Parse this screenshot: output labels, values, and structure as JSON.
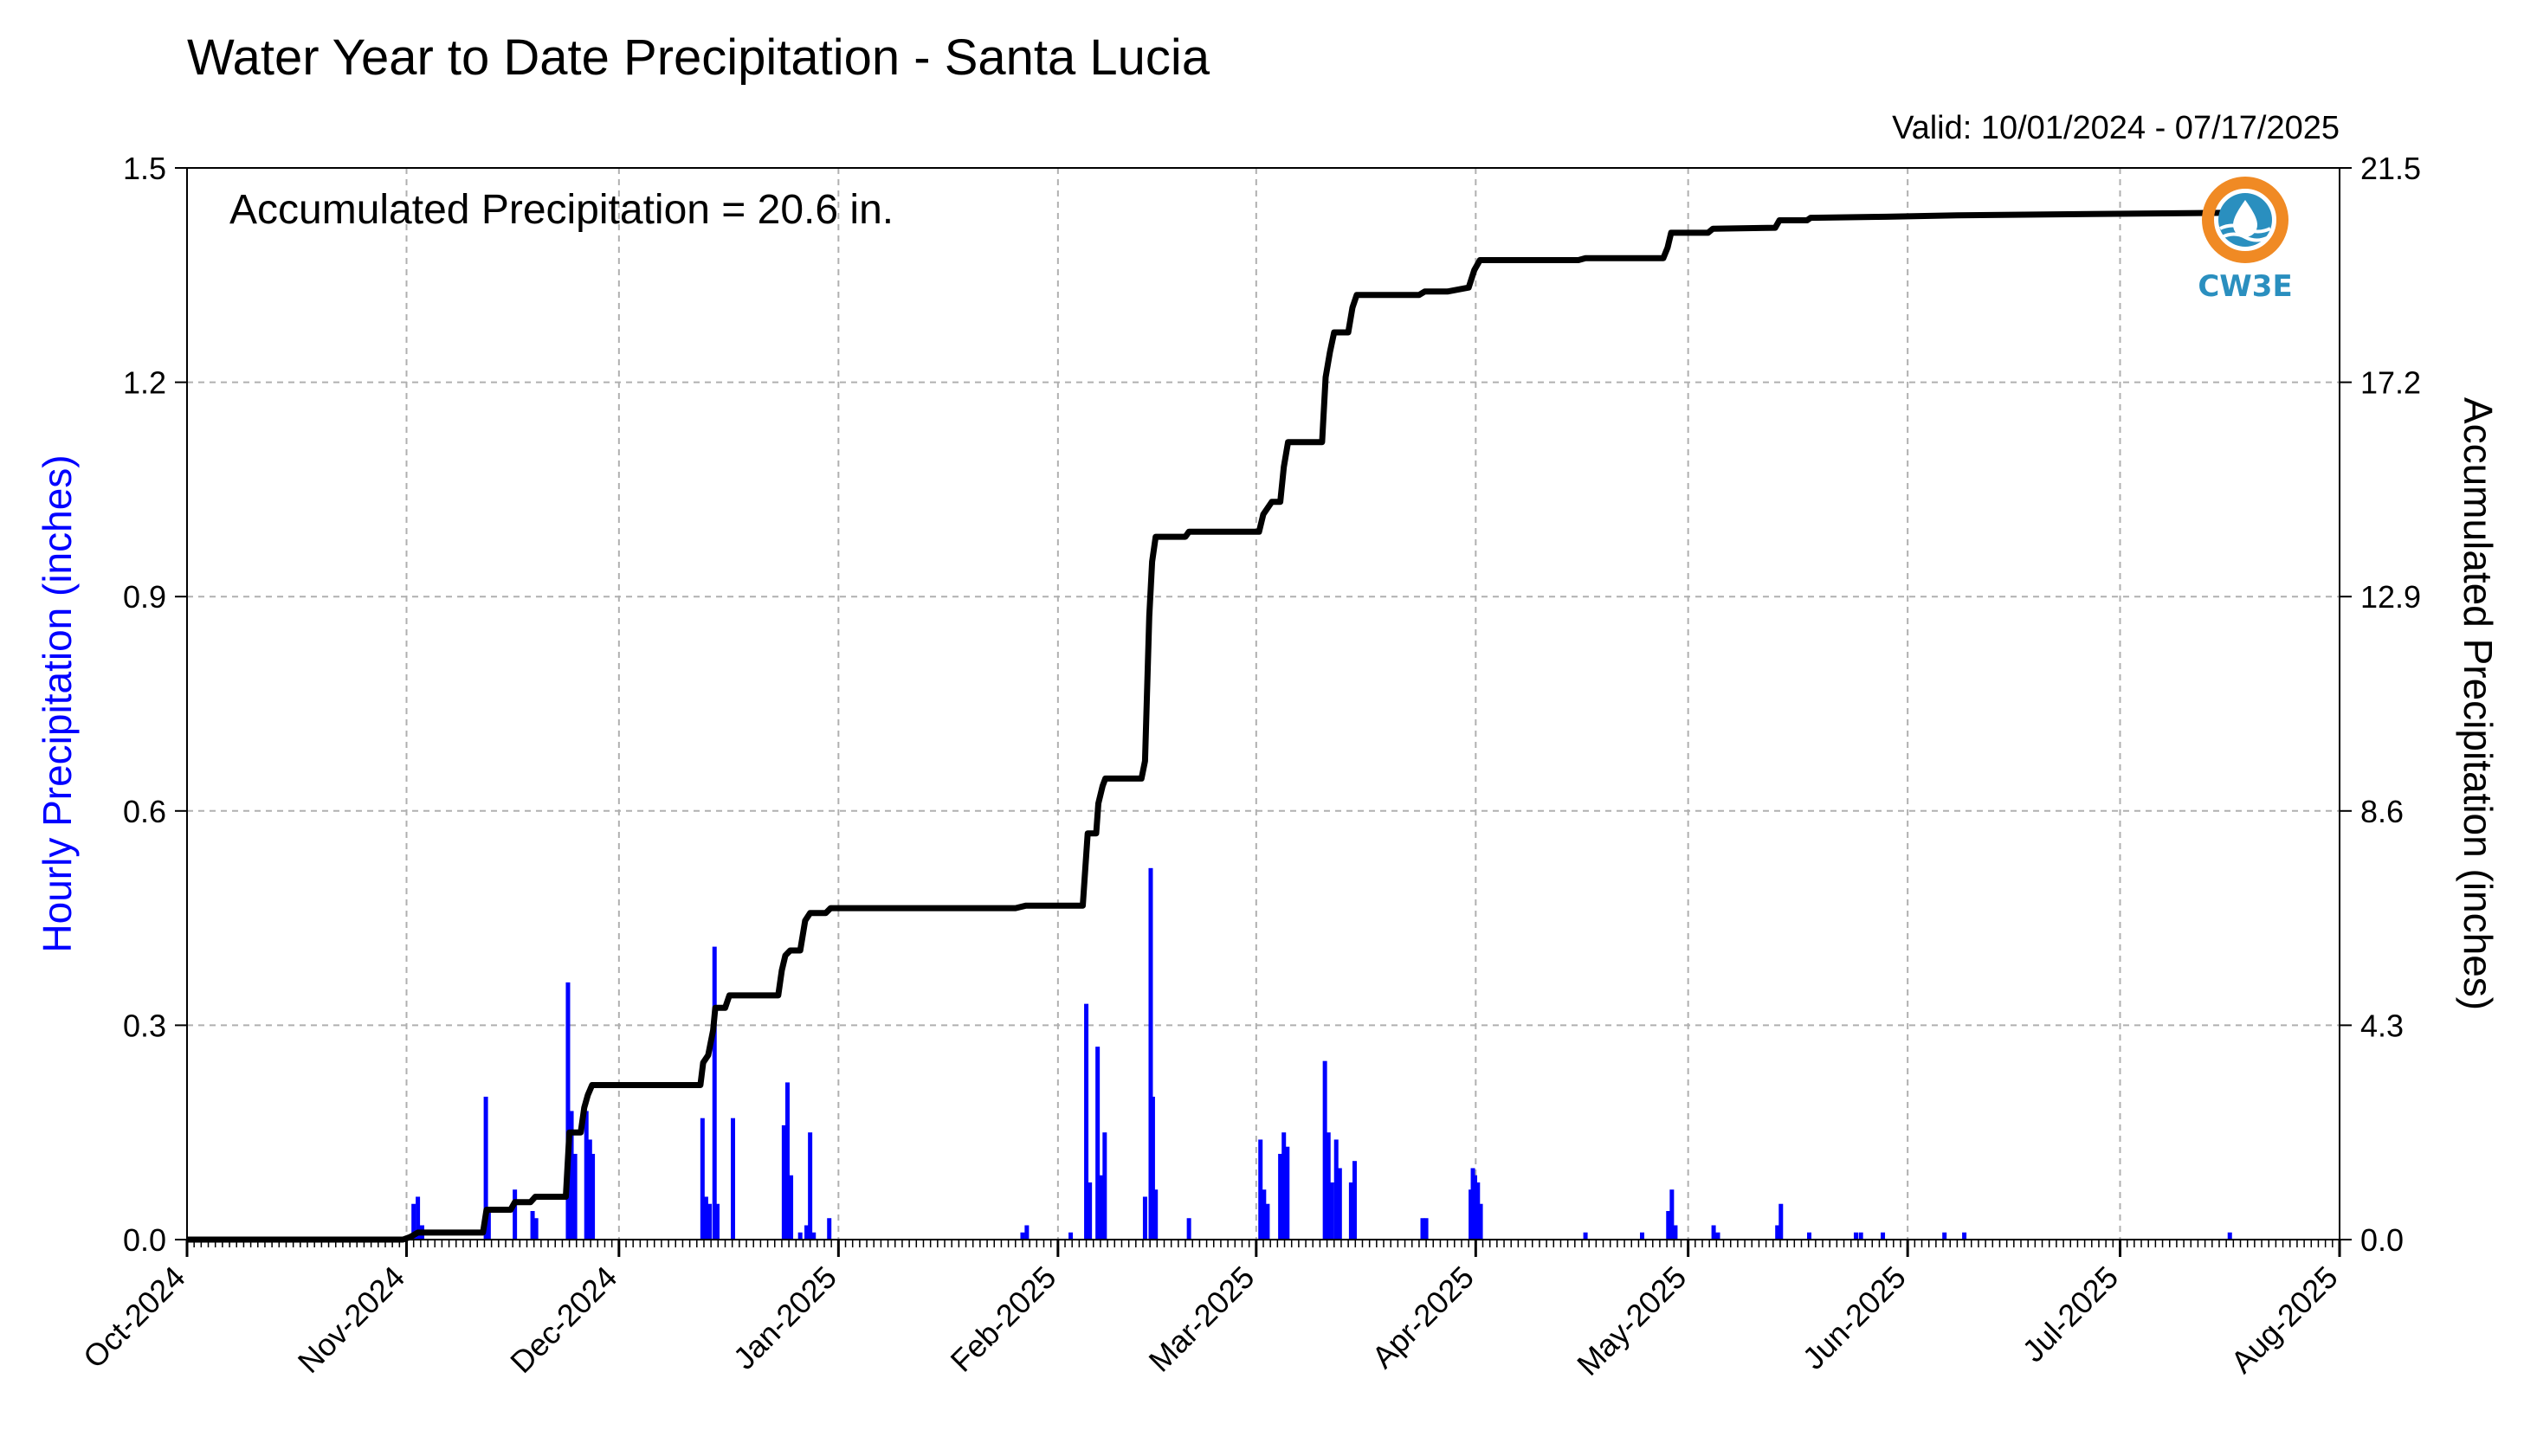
{
  "chart_data": {
    "type": "bar+line",
    "title": "Water Year to Date Precipitation - Santa Lucia",
    "valid_label": "Valid: 10/01/2024 - 07/17/2025",
    "annotation": "Accumulated Precipitation = 20.6 in.",
    "y_left_label": "Hourly Precipitation (inches)",
    "y_right_label": "Accumulated Precipitation (inches)",
    "y_left_ticks": [
      "0.0",
      "0.3",
      "0.6",
      "0.9",
      "1.2",
      "1.5"
    ],
    "y_right_ticks": [
      "0.0",
      "4.3",
      "8.6",
      "12.9",
      "17.2",
      "21.5"
    ],
    "ylim_left": [
      0,
      1.5
    ],
    "ylim_right": [
      0,
      21.5
    ],
    "x_ticks": [
      "Oct-2024",
      "Nov-2024",
      "Dec-2024",
      "Jan-2025",
      "Feb-2025",
      "Mar-2025",
      "Apr-2025",
      "May-2025",
      "Jun-2025",
      "Jul-2025",
      "Aug-2025"
    ],
    "x_tick_days": [
      0,
      31,
      61,
      92,
      123,
      151,
      182,
      212,
      243,
      273,
      304
    ],
    "xlim_days": [
      0,
      304
    ],
    "grid": true,
    "colors": {
      "hourly": "#0000ff",
      "accumulated": "#000000",
      "grid": "#b0b0b0",
      "y_left_label": "#0000ff"
    },
    "logo": {
      "text": "CW3E",
      "ring_color": "#f08a24",
      "drop_color": "#2a8fbf"
    },
    "hourly": [
      {
        "day": 32.0,
        "in": 0.05
      },
      {
        "day": 32.6,
        "in": 0.06
      },
      {
        "day": 33.2,
        "in": 0.02
      },
      {
        "day": 42.2,
        "in": 0.2
      },
      {
        "day": 42.6,
        "in": 0.04
      },
      {
        "day": 46.3,
        "in": 0.07
      },
      {
        "day": 48.8,
        "in": 0.04
      },
      {
        "day": 49.3,
        "in": 0.03
      },
      {
        "day": 53.8,
        "in": 0.36
      },
      {
        "day": 54.3,
        "in": 0.18
      },
      {
        "day": 54.8,
        "in": 0.12
      },
      {
        "day": 56.4,
        "in": 0.18
      },
      {
        "day": 56.9,
        "in": 0.14
      },
      {
        "day": 57.3,
        "in": 0.12
      },
      {
        "day": 72.8,
        "in": 0.17
      },
      {
        "day": 73.3,
        "in": 0.06
      },
      {
        "day": 73.8,
        "in": 0.05
      },
      {
        "day": 74.5,
        "in": 0.41
      },
      {
        "day": 74.9,
        "in": 0.05
      },
      {
        "day": 77.1,
        "in": 0.17
      },
      {
        "day": 84.3,
        "in": 0.16
      },
      {
        "day": 84.8,
        "in": 0.22
      },
      {
        "day": 85.3,
        "in": 0.09
      },
      {
        "day": 86.6,
        "in": 0.01
      },
      {
        "day": 87.5,
        "in": 0.02
      },
      {
        "day": 88.0,
        "in": 0.15
      },
      {
        "day": 88.5,
        "in": 0.01
      },
      {
        "day": 90.7,
        "in": 0.03
      },
      {
        "day": 118.0,
        "in": 0.01
      },
      {
        "day": 118.6,
        "in": 0.02
      },
      {
        "day": 124.8,
        "in": 0.01
      },
      {
        "day": 127.0,
        "in": 0.33
      },
      {
        "day": 127.5,
        "in": 0.08
      },
      {
        "day": 128.6,
        "in": 0.27
      },
      {
        "day": 129.1,
        "in": 0.09
      },
      {
        "day": 129.6,
        "in": 0.15
      },
      {
        "day": 135.3,
        "in": 0.06
      },
      {
        "day": 136.1,
        "in": 0.52
      },
      {
        "day": 136.4,
        "in": 0.2
      },
      {
        "day": 136.8,
        "in": 0.07
      },
      {
        "day": 141.5,
        "in": 0.03
      },
      {
        "day": 151.6,
        "in": 0.14
      },
      {
        "day": 152.1,
        "in": 0.07
      },
      {
        "day": 152.6,
        "in": 0.05
      },
      {
        "day": 154.4,
        "in": 0.12
      },
      {
        "day": 154.9,
        "in": 0.15
      },
      {
        "day": 155.4,
        "in": 0.13
      },
      {
        "day": 160.7,
        "in": 0.25
      },
      {
        "day": 161.2,
        "in": 0.15
      },
      {
        "day": 161.7,
        "in": 0.08
      },
      {
        "day": 162.3,
        "in": 0.14
      },
      {
        "day": 162.8,
        "in": 0.1
      },
      {
        "day": 164.4,
        "in": 0.08
      },
      {
        "day": 164.9,
        "in": 0.11
      },
      {
        "day": 174.5,
        "in": 0.03
      },
      {
        "day": 175.0,
        "in": 0.03
      },
      {
        "day": 181.3,
        "in": 0.07
      },
      {
        "day": 181.6,
        "in": 0.1
      },
      {
        "day": 181.9,
        "in": 0.09
      },
      {
        "day": 182.3,
        "in": 0.08
      },
      {
        "day": 182.7,
        "in": 0.05
      },
      {
        "day": 197.5,
        "in": 0.01
      },
      {
        "day": 205.5,
        "in": 0.01
      },
      {
        "day": 209.2,
        "in": 0.04
      },
      {
        "day": 209.7,
        "in": 0.07
      },
      {
        "day": 210.2,
        "in": 0.02
      },
      {
        "day": 215.6,
        "in": 0.02
      },
      {
        "day": 216.2,
        "in": 0.01
      },
      {
        "day": 224.6,
        "in": 0.02
      },
      {
        "day": 225.1,
        "in": 0.05
      },
      {
        "day": 229.1,
        "in": 0.01
      },
      {
        "day": 235.7,
        "in": 0.01
      },
      {
        "day": 236.4,
        "in": 0.01
      },
      {
        "day": 239.5,
        "in": 0.01
      },
      {
        "day": 248.2,
        "in": 0.01
      },
      {
        "day": 251.0,
        "in": 0.01
      },
      {
        "day": 288.5,
        "in": 0.01
      }
    ],
    "accumulated": [
      {
        "day": 0,
        "in": 0.0
      },
      {
        "day": 30.5,
        "in": 0.0
      },
      {
        "day": 31.5,
        "in": 0.05
      },
      {
        "day": 32.0,
        "in": 0.09
      },
      {
        "day": 32.6,
        "in": 0.14
      },
      {
        "day": 41.8,
        "in": 0.14
      },
      {
        "day": 42.3,
        "in": 0.6
      },
      {
        "day": 45.7,
        "in": 0.6
      },
      {
        "day": 46.3,
        "in": 0.75
      },
      {
        "day": 48.5,
        "in": 0.75
      },
      {
        "day": 49.2,
        "in": 0.86
      },
      {
        "day": 53.5,
        "in": 0.86
      },
      {
        "day": 54.0,
        "in": 2.15
      },
      {
        "day": 55.6,
        "in": 2.15
      },
      {
        "day": 56.1,
        "in": 2.65
      },
      {
        "day": 56.6,
        "in": 2.9
      },
      {
        "day": 57.2,
        "in": 3.1
      },
      {
        "day": 72.5,
        "in": 3.1
      },
      {
        "day": 72.9,
        "in": 3.55
      },
      {
        "day": 73.6,
        "in": 3.7
      },
      {
        "day": 74.3,
        "in": 4.2
      },
      {
        "day": 74.6,
        "in": 4.65
      },
      {
        "day": 76.0,
        "in": 4.65
      },
      {
        "day": 76.6,
        "in": 4.9
      },
      {
        "day": 83.5,
        "in": 4.9
      },
      {
        "day": 84.0,
        "in": 5.4
      },
      {
        "day": 84.5,
        "in": 5.7
      },
      {
        "day": 85.2,
        "in": 5.8
      },
      {
        "day": 86.6,
        "in": 5.8
      },
      {
        "day": 87.3,
        "in": 6.4
      },
      {
        "day": 88.0,
        "in": 6.55
      },
      {
        "day": 90.2,
        "in": 6.55
      },
      {
        "day": 90.9,
        "in": 6.65
      },
      {
        "day": 117.0,
        "in": 6.65
      },
      {
        "day": 118.5,
        "in": 6.7
      },
      {
        "day": 126.5,
        "in": 6.7
      },
      {
        "day": 127.2,
        "in": 8.15
      },
      {
        "day": 128.4,
        "in": 8.15
      },
      {
        "day": 128.7,
        "in": 8.75
      },
      {
        "day": 129.3,
        "in": 9.1
      },
      {
        "day": 129.7,
        "in": 9.25
      },
      {
        "day": 134.8,
        "in": 9.25
      },
      {
        "day": 135.3,
        "in": 9.6
      },
      {
        "day": 135.9,
        "in": 12.5
      },
      {
        "day": 136.3,
        "in": 13.6
      },
      {
        "day": 136.8,
        "in": 14.1
      },
      {
        "day": 141.0,
        "in": 14.1
      },
      {
        "day": 141.5,
        "in": 14.2
      },
      {
        "day": 151.4,
        "in": 14.2
      },
      {
        "day": 152.0,
        "in": 14.55
      },
      {
        "day": 153.2,
        "in": 14.8
      },
      {
        "day": 154.4,
        "in": 14.8
      },
      {
        "day": 154.9,
        "in": 15.5
      },
      {
        "day": 155.5,
        "in": 16.0
      },
      {
        "day": 160.3,
        "in": 16.0
      },
      {
        "day": 160.8,
        "in": 17.3
      },
      {
        "day": 161.4,
        "in": 17.8
      },
      {
        "day": 162.0,
        "in": 18.2
      },
      {
        "day": 164.0,
        "in": 18.2
      },
      {
        "day": 164.6,
        "in": 18.7
      },
      {
        "day": 165.2,
        "in": 18.95
      },
      {
        "day": 174.0,
        "in": 18.95
      },
      {
        "day": 174.8,
        "in": 19.02
      },
      {
        "day": 178.0,
        "in": 19.02
      },
      {
        "day": 181.0,
        "in": 19.1
      },
      {
        "day": 181.8,
        "in": 19.45
      },
      {
        "day": 182.6,
        "in": 19.65
      },
      {
        "day": 196.5,
        "in": 19.65
      },
      {
        "day": 197.5,
        "in": 19.69
      },
      {
        "day": 208.5,
        "in": 19.69
      },
      {
        "day": 209.1,
        "in": 19.9
      },
      {
        "day": 209.6,
        "in": 20.2
      },
      {
        "day": 214.8,
        "in": 20.2
      },
      {
        "day": 215.5,
        "in": 20.28
      },
      {
        "day": 224.3,
        "in": 20.3
      },
      {
        "day": 224.9,
        "in": 20.45
      },
      {
        "day": 228.8,
        "in": 20.45
      },
      {
        "day": 229.3,
        "in": 20.5
      },
      {
        "day": 240,
        "in": 20.52
      },
      {
        "day": 250,
        "in": 20.55
      },
      {
        "day": 289,
        "in": 20.6
      }
    ]
  }
}
